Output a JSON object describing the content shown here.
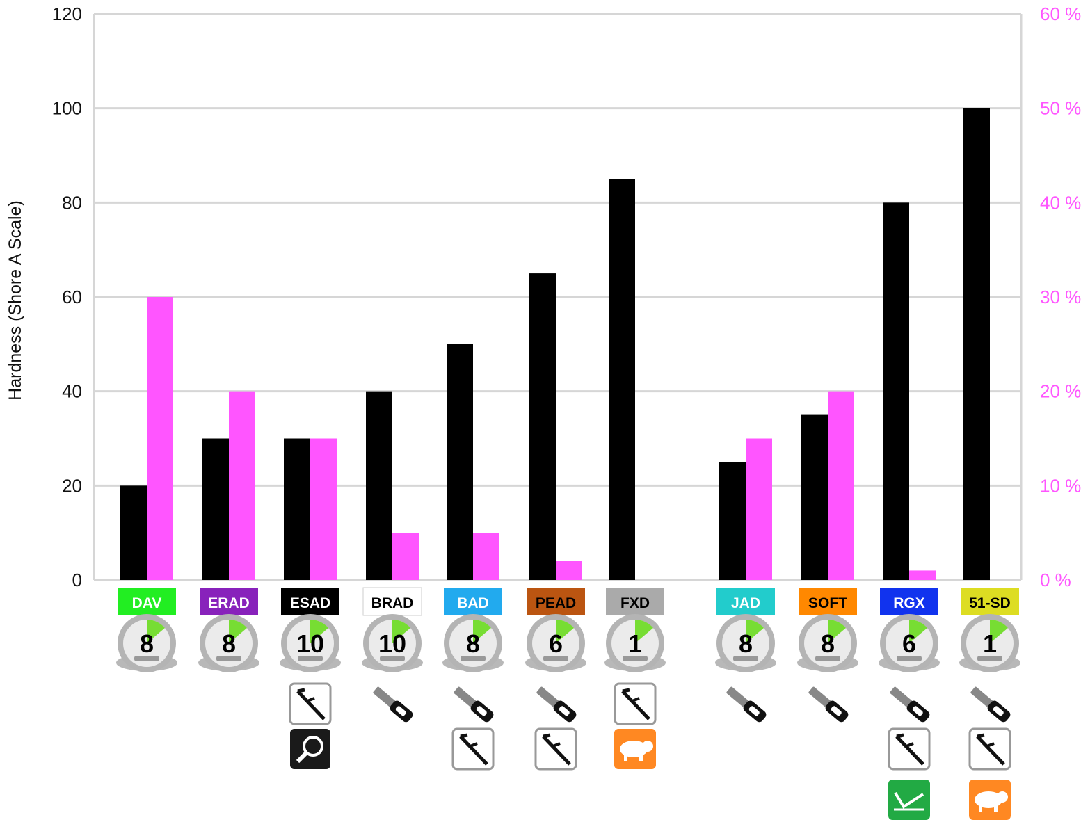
{
  "chart_data": {
    "type": "bar",
    "ylabel": "Hardness (Shore A Scale)",
    "ylim": [
      0,
      120
    ],
    "yticks": [
      "0",
      "20",
      "40",
      "60",
      "80",
      "100",
      "120"
    ],
    "y2lim": [
      0,
      60
    ],
    "y2ticks": [
      "0 %",
      "10 %",
      "20 %",
      "30 %",
      "40 %",
      "50 %",
      "60 %"
    ],
    "grid": true,
    "categories": [
      "DAV",
      "ERAD",
      "ESAD",
      "BRAD",
      "BAD",
      "PEAD",
      "FXD",
      "JAD",
      "SOFT",
      "RGX",
      "51-SD"
    ],
    "series": [
      {
        "axis": "left",
        "color": "#000000",
        "values": [
          20,
          30,
          30,
          40,
          50,
          65,
          85,
          25,
          35,
          80,
          100
        ]
      },
      {
        "axis": "right",
        "color": "#ff55ff",
        "values": [
          30,
          20,
          15,
          5,
          5,
          2,
          0,
          15,
          20,
          1,
          0
        ]
      }
    ],
    "category_badges": [
      {
        "label": "DAV",
        "bg": "#22ee22",
        "fg": "#ffffff"
      },
      {
        "label": "ERAD",
        "bg": "#8822bb",
        "fg": "#ffffff"
      },
      {
        "label": "ESAD",
        "bg": "#000000",
        "fg": "#ffffff"
      },
      {
        "label": "BRAD",
        "bg": "#ffffff",
        "fg": "#000000"
      },
      {
        "label": "BAD",
        "bg": "#22aaee",
        "fg": "#ffffff"
      },
      {
        "label": "PEAD",
        "bg": "#bb5511",
        "fg": "#000000"
      },
      {
        "label": "FXD",
        "bg": "#aaaaaa",
        "fg": "#000000"
      },
      {
        "label": "JAD",
        "bg": "#22cccc",
        "fg": "#ffffff"
      },
      {
        "label": "SOFT",
        "bg": "#ff8800",
        "fg": "#000000"
      },
      {
        "label": "RGX",
        "bg": "#1133ee",
        "fg": "#ffffff"
      },
      {
        "label": "51-SD",
        "bg": "#dddd22",
        "fg": "#000000"
      }
    ],
    "timer_values": [
      "8",
      "8",
      "10",
      "10",
      "8",
      "6",
      "1",
      "8",
      "8",
      "6",
      "1"
    ],
    "tool_icons": [
      [],
      [],
      [
        "caliper-icon",
        "magnifier-icon"
      ],
      [
        "knife-icon"
      ],
      [
        "knife-icon",
        "caliper-icon"
      ],
      [
        "knife-icon",
        "caliper-icon"
      ],
      [
        "caliper-icon",
        "pig-icon"
      ],
      [
        "knife-icon"
      ],
      [
        "knife-icon"
      ],
      [
        "knife-icon",
        "caliper-icon",
        "chart-icon"
      ],
      [
        "knife-icon",
        "caliper-icon",
        "pig-icon"
      ]
    ]
  }
}
